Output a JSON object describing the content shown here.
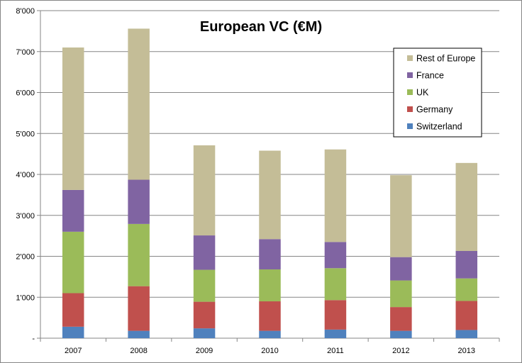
{
  "chart_data": {
    "type": "bar",
    "stacked": true,
    "title": "European VC (€M)",
    "xlabel": "",
    "ylabel": "",
    "categories": [
      "2007",
      "2008",
      "2009",
      "2010",
      "2011",
      "2012",
      "2013"
    ],
    "series": [
      {
        "name": "Switzerland",
        "color": "#4F81BD",
        "values": [
          280,
          180,
          240,
          180,
          210,
          180,
          200
        ]
      },
      {
        "name": "Germany",
        "color": "#C0504D",
        "values": [
          820,
          1090,
          650,
          720,
          720,
          580,
          710
        ]
      },
      {
        "name": "UK",
        "color": "#9BBB59",
        "values": [
          1500,
          1520,
          780,
          780,
          780,
          650,
          550
        ]
      },
      {
        "name": "France",
        "color": "#8064A2",
        "values": [
          1020,
          1080,
          840,
          740,
          640,
          570,
          670
        ]
      },
      {
        "name": "Rest of Europe",
        "color": "#C4BD97",
        "values": [
          3480,
          3690,
          2200,
          2160,
          2260,
          2000,
          2150
        ]
      }
    ],
    "ylim": [
      0,
      8000
    ],
    "yticks": [
      0,
      1000,
      2000,
      3000,
      4000,
      5000,
      6000,
      7000,
      8000
    ],
    "ytick_labels": [
      "-",
      "1'000",
      "2'000",
      "3'000",
      "4'000",
      "5'000",
      "6'000",
      "7'000",
      "8'000"
    ],
    "grid": true,
    "legend_position": "top-right",
    "legend_order": [
      "Rest of Europe",
      "France",
      "UK",
      "Germany",
      "Switzerland"
    ]
  }
}
